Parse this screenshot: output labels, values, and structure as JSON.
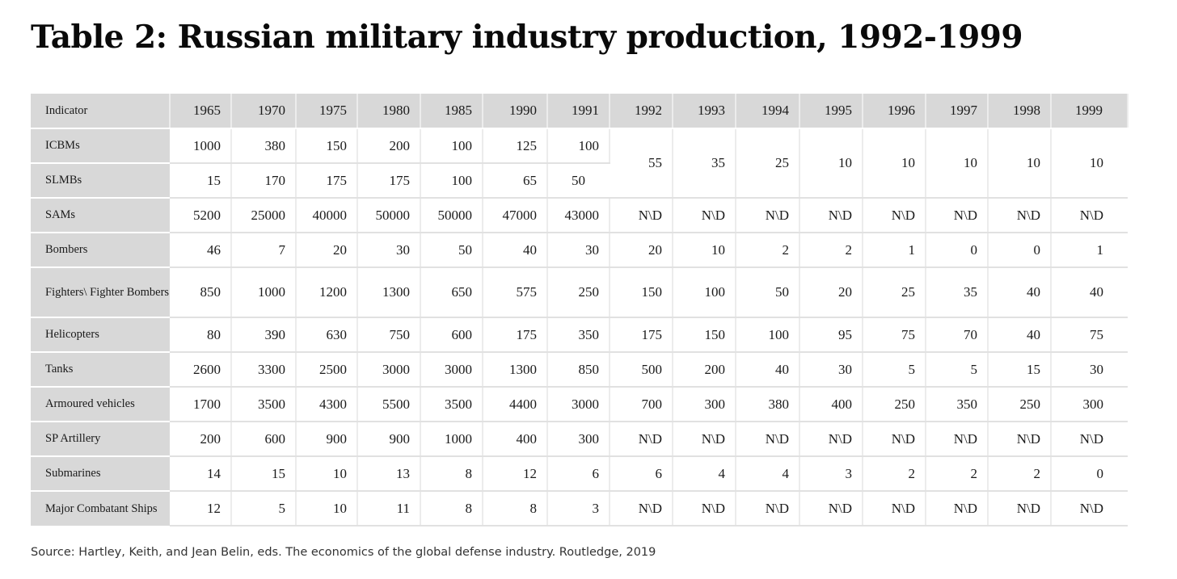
{
  "title": "Table 2: Russian military industry production, 1992-1999",
  "source": "Source: Hartley, Keith, and Jean Belin, eds. The economics of the global defense industry. Routledge, 2019",
  "table": {
    "indicator_header": "Indicator",
    "years": [
      "1965",
      "1970",
      "1975",
      "1980",
      "1985",
      "1990",
      "1991",
      "1992",
      "1993",
      "1994",
      "1995",
      "1996",
      "1997",
      "1998",
      "1999"
    ],
    "icbm_slbm": {
      "icbm_label": "ICBMs",
      "icbm_values": [
        "1000",
        "380",
        "150",
        "200",
        "100",
        "125",
        "100"
      ],
      "slbm_label": "SLMBs",
      "slbm_values": [
        "15",
        "170",
        "175",
        "175",
        "100",
        "65",
        "50"
      ],
      "combined_values": [
        "55",
        "35",
        "25",
        "10",
        "10",
        "10",
        "10",
        "10"
      ]
    },
    "rows": [
      {
        "label": "SAMs",
        "values": [
          "5200",
          "25000",
          "40000",
          "50000",
          "50000",
          "47000",
          "43000",
          "N\\D",
          "N\\D",
          "N\\D",
          "N\\D",
          "N\\D",
          "N\\D",
          "N\\D",
          "N\\D"
        ]
      },
      {
        "label": "Bombers",
        "values": [
          "46",
          "7",
          "20",
          "30",
          "50",
          "40",
          "30",
          "20",
          "10",
          "2",
          "2",
          "1",
          "0",
          "0",
          "1"
        ]
      },
      {
        "label": "Fighters\\ Fighter Bombers",
        "values": [
          "850",
          "1000",
          "1200",
          "1300",
          "650",
          "575",
          "250",
          "150",
          "100",
          "50",
          "20",
          "25",
          "35",
          "40",
          "40"
        ]
      },
      {
        "label": "Helicopters",
        "values": [
          "80",
          "390",
          "630",
          "750",
          "600",
          "175",
          "350",
          "175",
          "150",
          "100",
          "95",
          "75",
          "70",
          "40",
          "75"
        ]
      },
      {
        "label": "Tanks",
        "values": [
          "2600",
          "3300",
          "2500",
          "3000",
          "3000",
          "1300",
          "850",
          "500",
          "200",
          "40",
          "30",
          "5",
          "5",
          "15",
          "30"
        ]
      },
      {
        "label": "Armoured vehicles",
        "values": [
          "1700",
          "3500",
          "4300",
          "5500",
          "3500",
          "4400",
          "3000",
          "700",
          "300",
          "380",
          "400",
          "250",
          "350",
          "250",
          "300"
        ]
      },
      {
        "label": "SP Artillery",
        "values": [
          "200",
          "600",
          "900",
          "900",
          "1000",
          "400",
          "300",
          "N\\D",
          "N\\D",
          "N\\D",
          "N\\D",
          "N\\D",
          "N\\D",
          "N\\D",
          "N\\D"
        ]
      },
      {
        "label": "Submarines",
        "values": [
          "14",
          "15",
          "10",
          "13",
          "8",
          "12",
          "6",
          "6",
          "4",
          "4",
          "3",
          "2",
          "2",
          "2",
          "0"
        ]
      },
      {
        "label": "Major Combatant Ships",
        "values": [
          "12",
          "5",
          "10",
          "11",
          "8",
          "8",
          "3",
          "N\\D",
          "N\\D",
          "N\\D",
          "N\\D",
          "N\\D",
          "N\\D",
          "N\\D",
          "N\\D"
        ]
      }
    ]
  }
}
